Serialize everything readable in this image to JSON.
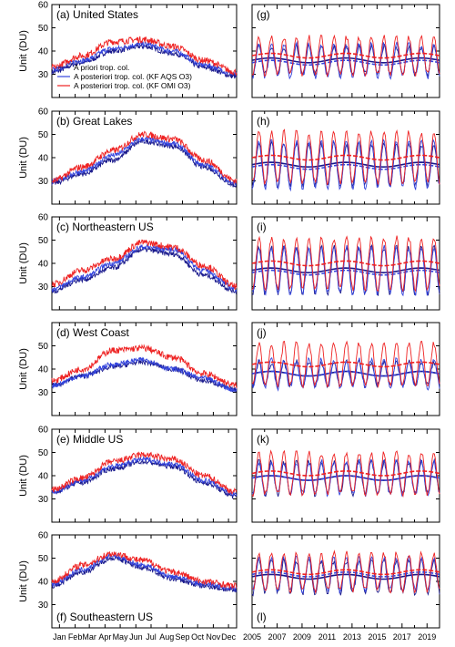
{
  "figure": {
    "ylabel": "Unit (DU)",
    "legend": [
      {
        "name": "A priori trop. col.",
        "color": "#1a1a8c"
      },
      {
        "name": "A posteriori trop. col. (KF AQS O3)",
        "color": "#3344dd"
      },
      {
        "name": "A posteriori trop. col. (KF OMI O3)",
        "color": "#ee2222"
      }
    ],
    "left_ticks": [
      "Jan",
      "Feb",
      "Mar",
      "Apr",
      "May",
      "Jun",
      "Jul",
      "Aug",
      "Sep",
      "Oct",
      "Nov",
      "Dec"
    ],
    "right_ticks": [
      "2005",
      "2007",
      "2009",
      "2011",
      "2013",
      "2015",
      "2017",
      "2019"
    ]
  },
  "chart_data": [
    {
      "type": "line",
      "id": "a",
      "region": "United States",
      "title": "(a) United States",
      "title_pos": "top",
      "ylim": [
        20,
        60
      ],
      "yticks": [
        30,
        40,
        50,
        60
      ],
      "x_knots": [
        0,
        60,
        120,
        180,
        240,
        300,
        365
      ],
      "series": [
        {
          "name": "A priori trop. col.",
          "values": [
            31,
            35,
            40,
            42,
            39,
            33,
            29
          ]
        },
        {
          "name": "A posteriori trop. col. (KF AQS O3)",
          "values": [
            32,
            36,
            41,
            43,
            40,
            34,
            30
          ]
        },
        {
          "name": "A posteriori trop. col. (KF OMI O3)",
          "values": [
            33,
            38,
            44,
            45,
            42,
            36,
            31
          ]
        }
      ]
    },
    {
      "type": "line",
      "id": "b",
      "region": "Great Lakes",
      "title": "(b) Great Lakes",
      "title_pos": "top",
      "ylim": [
        20,
        60
      ],
      "yticks": [
        30,
        40,
        50,
        60
      ],
      "x_knots": [
        0,
        60,
        120,
        180,
        240,
        300,
        365
      ],
      "series": [
        {
          "name": "A priori trop. col.",
          "values": [
            29,
            33,
            39,
            47,
            45,
            36,
            28
          ]
        },
        {
          "name": "A posteriori trop. col. (KF AQS O3)",
          "values": [
            30,
            34,
            41,
            48,
            46,
            37,
            29
          ]
        },
        {
          "name": "A posteriori trop. col. (KF OMI O3)",
          "values": [
            30,
            36,
            43,
            50,
            48,
            39,
            30
          ]
        }
      ]
    },
    {
      "type": "line",
      "id": "c",
      "region": "Northeastern US",
      "title": "(c) Northeastern US",
      "title_pos": "top",
      "ylim": [
        20,
        60
      ],
      "yticks": [
        30,
        40,
        50,
        60
      ],
      "x_knots": [
        0,
        60,
        120,
        180,
        240,
        300,
        365
      ],
      "series": [
        {
          "name": "A priori trop. col.",
          "values": [
            28,
            33,
            38,
            46,
            44,
            35,
            28
          ]
        },
        {
          "name": "A posteriori trop. col. (KF AQS O3)",
          "values": [
            29,
            34,
            40,
            47,
            46,
            37,
            29
          ]
        },
        {
          "name": "A posteriori trop. col. (KF OMI O3)",
          "values": [
            31,
            37,
            42,
            49,
            47,
            39,
            30
          ]
        }
      ]
    },
    {
      "type": "line",
      "id": "d",
      "region": "West Coast",
      "title": "(d) West Coast",
      "title_pos": "top",
      "ylim": [
        20,
        60
      ],
      "yticks": [
        30,
        40,
        50
      ],
      "x_knots": [
        0,
        60,
        120,
        180,
        240,
        300,
        365
      ],
      "series": [
        {
          "name": "A priori trop. col.",
          "values": [
            33,
            37,
            41,
            43,
            40,
            35,
            31
          ]
        },
        {
          "name": "A posteriori trop. col. (KF AQS O3)",
          "values": [
            33,
            37,
            42,
            44,
            40,
            36,
            31
          ]
        },
        {
          "name": "A posteriori trop. col. (KF OMI O3)",
          "values": [
            35,
            40,
            48,
            49,
            45,
            38,
            33
          ]
        }
      ]
    },
    {
      "type": "line",
      "id": "e",
      "region": "Middle US",
      "title": "(e) Middle US",
      "title_pos": "top",
      "ylim": [
        20,
        60
      ],
      "yticks": [
        30,
        40,
        50,
        60
      ],
      "x_knots": [
        0,
        60,
        120,
        180,
        240,
        300,
        365
      ],
      "series": [
        {
          "name": "A priori trop. col.",
          "values": [
            33,
            37,
            43,
            46,
            44,
            37,
            31
          ]
        },
        {
          "name": "A posteriori trop. col. (KF AQS O3)",
          "values": [
            33,
            38,
            44,
            47,
            45,
            38,
            32
          ]
        },
        {
          "name": "A posteriori trop. col. (KF OMI O3)",
          "values": [
            34,
            39,
            46,
            49,
            47,
            40,
            33
          ]
        }
      ]
    },
    {
      "type": "line",
      "id": "f",
      "region": "Southeastern US",
      "title": "(f) Southeastern US",
      "title_pos": "bottom",
      "ylim": [
        20,
        60
      ],
      "yticks": [
        30,
        40,
        50,
        60
      ],
      "x_knots": [
        0,
        60,
        120,
        180,
        240,
        300,
        365
      ],
      "series": [
        {
          "name": "A priori trop. col.",
          "values": [
            38,
            44,
            50,
            46,
            41,
            38,
            36
          ]
        },
        {
          "name": "A posteriori trop. col. (KF AQS O3)",
          "values": [
            39,
            45,
            51,
            47,
            42,
            39,
            37
          ]
        },
        {
          "name": "A posteriori trop. col. (KF OMI O3)",
          "values": [
            40,
            47,
            52,
            49,
            44,
            40,
            38
          ]
        }
      ]
    },
    {
      "type": "line",
      "id": "g",
      "region": "United States",
      "title": "(g)",
      "title_pos": "top",
      "ylim": [
        20,
        60
      ],
      "x_years": [
        2005,
        2020
      ],
      "series": [
        {
          "name": "A priori trop. col.",
          "mean": 36,
          "amp": 6,
          "trend": 36
        },
        {
          "name": "A posteriori trop. col. (KF AQS O3)",
          "mean": 36,
          "amp": 7,
          "trend": 35
        },
        {
          "name": "A posteriori trop. col. (KF OMI O3)",
          "mean": 38,
          "amp": 8,
          "trend": 38
        }
      ]
    },
    {
      "type": "line",
      "id": "h",
      "region": "Great Lakes",
      "title": "(h)",
      "title_pos": "top",
      "ylim": [
        20,
        60
      ],
      "x_years": [
        2005,
        2020
      ],
      "series": [
        {
          "name": "A priori trop. col.",
          "mean": 37,
          "amp": 9,
          "trend": 37
        },
        {
          "name": "A posteriori trop. col. (KF AQS O3)",
          "mean": 37,
          "amp": 10,
          "trend": 36
        },
        {
          "name": "A posteriori trop. col. (KF OMI O3)",
          "mean": 40,
          "amp": 11,
          "trend": 40
        }
      ]
    },
    {
      "type": "line",
      "id": "i",
      "region": "Northeastern US",
      "title": "(i)",
      "title_pos": "top",
      "ylim": [
        20,
        60
      ],
      "x_years": [
        2005,
        2020
      ],
      "series": [
        {
          "name": "A priori trop. col.",
          "mean": 37,
          "amp": 10,
          "trend": 37
        },
        {
          "name": "A posteriori trop. col. (KF AQS O3)",
          "mean": 37,
          "amp": 10,
          "trend": 36
        },
        {
          "name": "A posteriori trop. col. (KF OMI O3)",
          "mean": 40,
          "amp": 11,
          "trend": 40
        }
      ]
    },
    {
      "type": "line",
      "id": "j",
      "region": "West Coast",
      "title": "(j)",
      "title_pos": "top",
      "ylim": [
        20,
        60
      ],
      "x_years": [
        2005,
        2020
      ],
      "series": [
        {
          "name": "A priori trop. col.",
          "mean": 38,
          "amp": 5,
          "trend": 38
        },
        {
          "name": "A posteriori trop. col. (KF AQS O3)",
          "mean": 38,
          "amp": 6,
          "trend": 38
        },
        {
          "name": "A posteriori trop. col. (KF OMI O3)",
          "mean": 42,
          "amp": 9,
          "trend": 42
        }
      ]
    },
    {
      "type": "line",
      "id": "k",
      "region": "Middle US",
      "title": "(k)",
      "title_pos": "top",
      "ylim": [
        20,
        60
      ],
      "x_years": [
        2005,
        2020
      ],
      "series": [
        {
          "name": "A priori trop. col.",
          "mean": 39,
          "amp": 7,
          "trend": 39
        },
        {
          "name": "A posteriori trop. col. (KF AQS O3)",
          "mean": 39,
          "amp": 7,
          "trend": 39
        },
        {
          "name": "A posteriori trop. col. (KF OMI O3)",
          "mean": 41,
          "amp": 9,
          "trend": 41
        }
      ]
    },
    {
      "type": "line",
      "id": "l",
      "region": "Southeastern US",
      "title": "(l)",
      "title_pos": "bottom",
      "ylim": [
        20,
        60
      ],
      "x_years": [
        2005,
        2020
      ],
      "series": [
        {
          "name": "A priori trop. col.",
          "mean": 42,
          "amp": 7,
          "trend": 42
        },
        {
          "name": "A posteriori trop. col. (KF AQS O3)",
          "mean": 43,
          "amp": 7,
          "trend": 43
        },
        {
          "name": "A posteriori trop. col. (KF OMI O3)",
          "mean": 44,
          "amp": 8,
          "trend": 44
        }
      ]
    }
  ]
}
